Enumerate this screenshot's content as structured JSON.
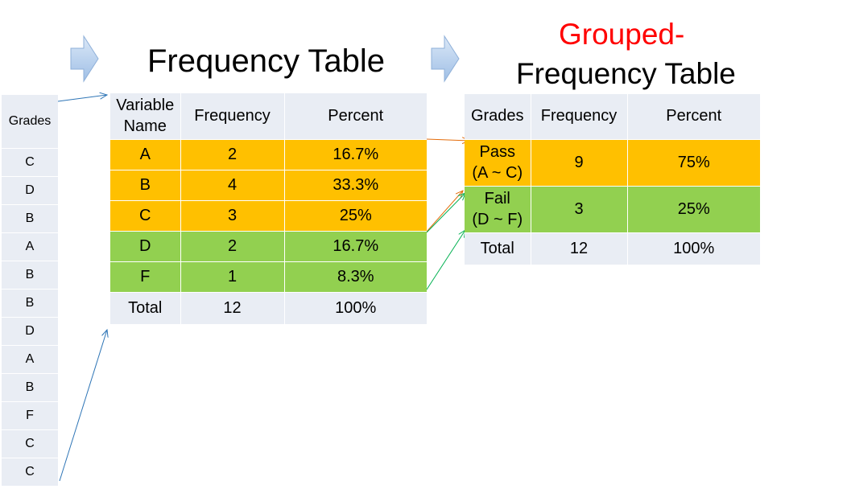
{
  "raw_grades": {
    "header": "Grades",
    "values": [
      "C",
      "D",
      "B",
      "A",
      "B",
      "B",
      "D",
      "A",
      "B",
      "F",
      "C",
      "C"
    ]
  },
  "frequency_table": {
    "title": "Frequency Table",
    "headers": [
      "Variable Name",
      "Frequency",
      "Percent"
    ],
    "rows": [
      {
        "name": "A",
        "frequency": "2",
        "percent": "16.7%",
        "group": "pass"
      },
      {
        "name": "B",
        "frequency": "4",
        "percent": "33.3%",
        "group": "pass"
      },
      {
        "name": "C",
        "frequency": "3",
        "percent": "25%",
        "group": "pass"
      },
      {
        "name": "D",
        "frequency": "2",
        "percent": "16.7%",
        "group": "fail"
      },
      {
        "name": "F",
        "frequency": "1",
        "percent": "8.3%",
        "group": "fail"
      }
    ],
    "total": {
      "name": "Total",
      "frequency": "12",
      "percent": "100%"
    }
  },
  "grouped_table": {
    "title_line1": "Grouped-",
    "title_line2": "Frequency Table",
    "headers": [
      "Grades",
      "Frequency",
      "Percent"
    ],
    "rows": [
      {
        "name_line1": "Pass",
        "name_line2": "(A ~ C)",
        "frequency": "9",
        "percent": "75%",
        "group": "pass"
      },
      {
        "name_line1": "Fail",
        "name_line2": "(D ~ F)",
        "frequency": "3",
        "percent": "25%",
        "group": "fail"
      }
    ],
    "total": {
      "name": "Total",
      "frequency": "12",
      "percent": "100%"
    }
  },
  "colors": {
    "header_bg": "#e9edf4",
    "pass_bg": "#ffc000",
    "fail_bg": "#92d050",
    "grouped_title_accent": "#ff0000",
    "arrow_blue": "#2e75b6",
    "arrow_orange": "#e46c0a",
    "arrow_green": "#00b050",
    "block_arrow_fill": "#c5d9f1"
  }
}
